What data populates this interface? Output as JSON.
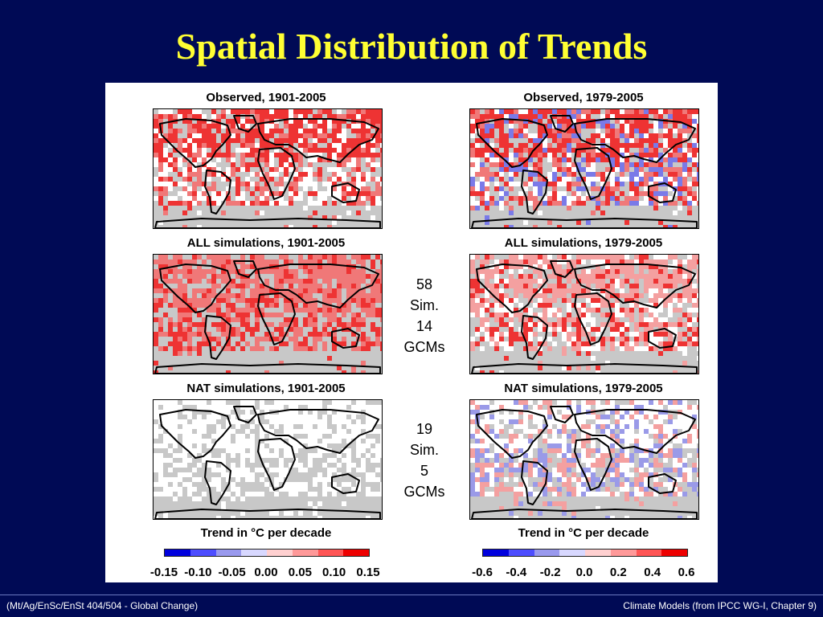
{
  "slide": {
    "title": "Spatial Distribution of Trends"
  },
  "panels": {
    "obs_long": {
      "title": "Observed, 1901-2005",
      "colors": [
        "#ee3333",
        "#f07878",
        "#c8c8c8",
        "#ffffff"
      ]
    },
    "obs_short": {
      "title": "Observed, 1979-2005",
      "colors": [
        "#ee3333",
        "#f07878",
        "#c8c8c8",
        "#ffffff",
        "#7a7ae8"
      ]
    },
    "all_long": {
      "title": "ALL simulations, 1901-2005",
      "colors": [
        "#f07878",
        "#ee3333",
        "#c8c8c8"
      ]
    },
    "all_short": {
      "title": "ALL simulations, 1979-2005",
      "colors": [
        "#f4a0a0",
        "#ee3333",
        "#c8c8c8",
        "#ffffff"
      ]
    },
    "nat_long": {
      "title": "NAT simulations, 1901-2005",
      "colors": [
        "#ffffff",
        "#c8c8c8"
      ]
    },
    "nat_short": {
      "title": "NAT simulations, 1979-2005",
      "colors": [
        "#ffffff",
        "#c8c8c8",
        "#9a9ae8",
        "#f4a0a0"
      ]
    }
  },
  "notes": {
    "all": {
      "line1": "58",
      "line2": "Sim.",
      "line3": "14",
      "line4": "GCMs"
    },
    "nat": {
      "line1": "19",
      "line2": "Sim.",
      "line3": "5",
      "line4": "GCMs"
    }
  },
  "legends": {
    "left": {
      "title": "Trend in °C per decade",
      "ticks": [
        "-0.15",
        "-0.10",
        "-0.05",
        "0.00",
        "0.05",
        "0.10",
        "0.15"
      ]
    },
    "right": {
      "title": "Trend in °C per decade",
      "ticks": [
        "-0.6",
        "-0.4",
        "-0.2",
        "0.0",
        "0.2",
        "0.4",
        "0.6"
      ]
    },
    "colors": [
      "#0000dd",
      "#4d4dff",
      "#9999ee",
      "#d8d8ff",
      "#ffd0d0",
      "#ff9999",
      "#ff5555",
      "#ee0000"
    ]
  },
  "footer": {
    "left": "(Mt/Ag/EnSc/EnSt 404/504 - Global Change)",
    "right": "Climate Models  (from IPCC WG-I, Chapter 9)"
  }
}
